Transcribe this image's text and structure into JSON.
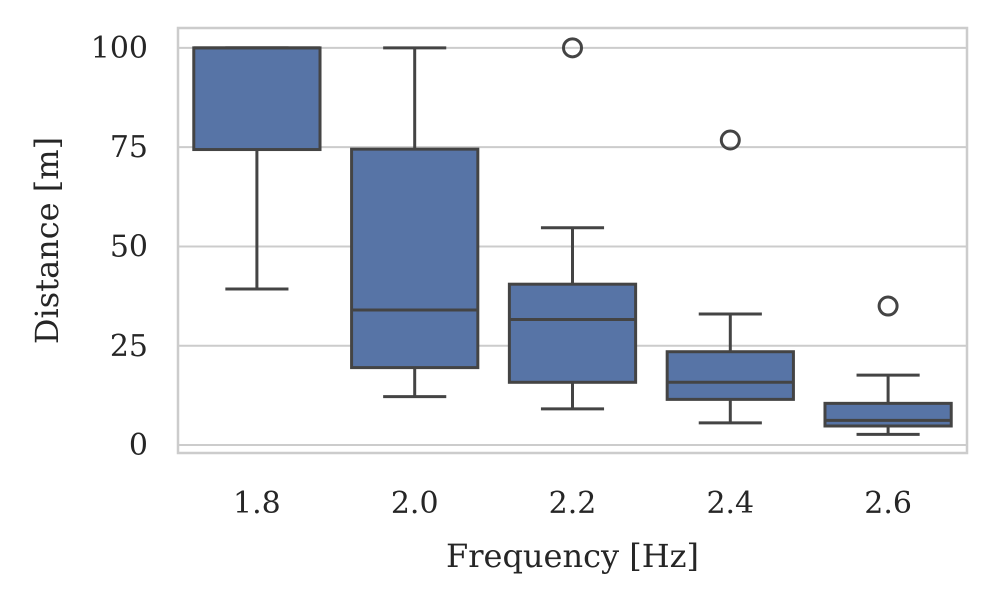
{
  "chart_data": {
    "type": "box",
    "title": "",
    "xlabel": "Frequency [Hz]",
    "ylabel": "Distance [m]",
    "ylim": [
      -2,
      105
    ],
    "yticks": [
      0,
      25,
      50,
      75,
      100
    ],
    "ytick_labels": [
      "0",
      "25",
      "50",
      "75",
      "100"
    ],
    "grid": "horizontal",
    "colors": {
      "box": "#5774a6",
      "line": "#444444",
      "grid": "#cccccc",
      "frame": "#cccccc"
    },
    "categories": [
      "1.8",
      "2.0",
      "2.2",
      "2.4",
      "2.6"
    ],
    "boxes": [
      {
        "category": "1.8",
        "whisker_low": 39.3,
        "q1": 74.4,
        "median": 100,
        "q3": 100,
        "whisker_high": 100,
        "outliers": []
      },
      {
        "category": "2.0",
        "whisker_low": 12.2,
        "q1": 19.5,
        "median": 34,
        "q3": 74.5,
        "whisker_high": 100,
        "outliers": []
      },
      {
        "category": "2.2",
        "whisker_low": 9.1,
        "q1": 15.8,
        "median": 31.6,
        "q3": 40.5,
        "whisker_high": 54.7,
        "outliers": [
          100
        ]
      },
      {
        "category": "2.4",
        "whisker_low": 5.6,
        "q1": 11.5,
        "median": 15.8,
        "q3": 23.5,
        "whisker_high": 33,
        "outliers": [
          76.8
        ]
      },
      {
        "category": "2.6",
        "whisker_low": 2.7,
        "q1": 4.8,
        "median": 6.2,
        "q3": 10.5,
        "whisker_high": 17.6,
        "outliers": [
          35
        ]
      }
    ]
  }
}
